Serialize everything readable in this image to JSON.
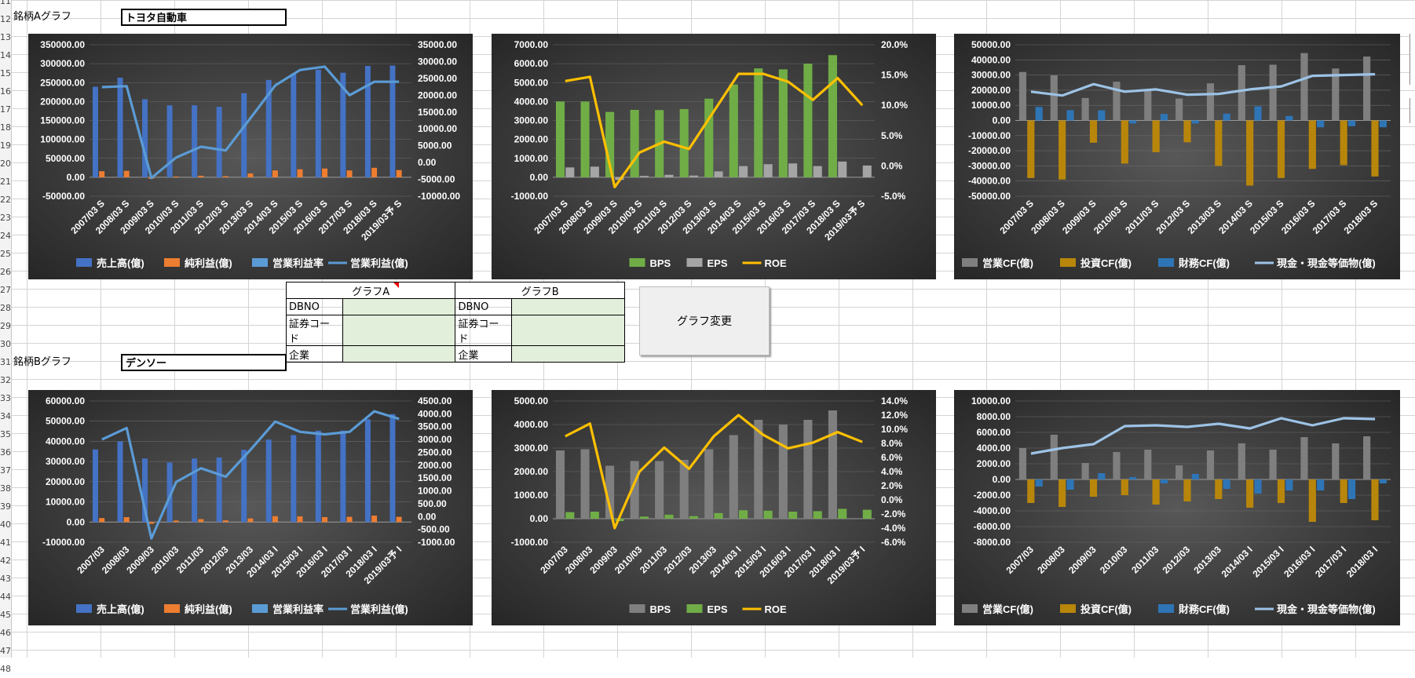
{
  "row_numbers": [
    "11",
    "12",
    "13",
    "14",
    "15",
    "16",
    "17",
    "18",
    "19",
    "20",
    "21",
    "22",
    "23",
    "24",
    "25",
    "26",
    "27",
    "28",
    "29",
    "30",
    "31",
    "32",
    "33",
    "34",
    "35",
    "36",
    "37",
    "38",
    "39",
    "40",
    "41",
    "42",
    "43",
    "44",
    "45",
    "46",
    "47",
    "48"
  ],
  "stock_a": {
    "label": "銘柄Aグラフ",
    "name": "トヨタ自動車"
  },
  "stock_b": {
    "label": "銘柄Bグラフ",
    "name": "デンソー"
  },
  "selector": {
    "graph_a": {
      "header": "グラフA",
      "rows": [
        {
          "label": "DBNO",
          "value": ""
        },
        {
          "label": "証券コード",
          "value": ""
        },
        {
          "label": "企業",
          "value": ""
        }
      ]
    },
    "graph_b": {
      "header": "グラフB",
      "rows": [
        {
          "label": "DBNO",
          "value": ""
        },
        {
          "label": "証券コード",
          "value": ""
        },
        {
          "label": "企業",
          "value": ""
        }
      ]
    }
  },
  "button": {
    "label": "グラフ変更"
  },
  "charts": [
    {
      "type": "combo",
      "categories": [
        "2007/03 S",
        "2008/03 S",
        "2009/03 S",
        "2010/03 S",
        "2011/03 S",
        "2012/03 S",
        "2013/03 S",
        "2014/03 S",
        "2015/03 S",
        "2016/03 S",
        "2017/03 S",
        "2018/03 S",
        "2019/03予 S"
      ],
      "y_ticks": [
        "350000.00",
        "300000.00",
        "250000.00",
        "200000.00",
        "150000.00",
        "100000.00",
        "50000.00",
        "0.00",
        "-50000.00"
      ],
      "y_range": [
        -50000,
        350000
      ],
      "y2_ticks": [
        "35000.00",
        "30000.00",
        "25000.00",
        "20000.00",
        "15000.00",
        "10000.00",
        "5000.00",
        "0.00",
        "-5000.00",
        "-10000.00"
      ],
      "y2_range": [
        -10000,
        35000
      ],
      "series": [
        {
          "name": "売上高(億)",
          "kind": "bar",
          "axis": "y",
          "color": "#4472c4",
          "values": [
            239000,
            263000,
            206000,
            190000,
            190000,
            186000,
            222000,
            257000,
            272000,
            284000,
            276000,
            294000,
            295000
          ]
        },
        {
          "name": "純利益(億)",
          "kind": "bar",
          "axis": "y",
          "color": "#ed7d31",
          "values": [
            16000,
            17000,
            -4000,
            2000,
            4000,
            3000,
            10000,
            18000,
            21000,
            23000,
            18000,
            25000,
            19000
          ]
        },
        {
          "name": "営業利益率",
          "kind": "bar",
          "axis": "y",
          "color": "#5b9bd5",
          "values": [
            0,
            0,
            0,
            0,
            0,
            0,
            0,
            0,
            0,
            0,
            0,
            0,
            0
          ]
        },
        {
          "name": "営業利益(億)",
          "kind": "line",
          "axis": "y2",
          "color": "#5b9bd5",
          "values": [
            22400,
            22700,
            -4600,
            1500,
            4700,
            3600,
            13200,
            22900,
            27500,
            28500,
            20000,
            24000,
            24000
          ]
        }
      ]
    },
    {
      "type": "combo",
      "categories": [
        "2007/03 S",
        "2008/03 S",
        "2009/03 S",
        "2010/03 S",
        "2011/03 S",
        "2012/03 S",
        "2013/03 S",
        "2014/03 S",
        "2015/03 S",
        "2016/03 S",
        "2017/03 S",
        "2018/03 S",
        "2019/03予 S"
      ],
      "y_ticks": [
        "7000.00",
        "6000.00",
        "5000.00",
        "4000.00",
        "3000.00",
        "2000.00",
        "1000.00",
        "0.00",
        "-1000.00"
      ],
      "y_range": [
        -1000,
        7000
      ],
      "y2_ticks": [
        "20.0%",
        "15.0%",
        "10.0%",
        "5.0%",
        "0.0%",
        "-5.0%"
      ],
      "y2_range": [
        -5,
        20
      ],
      "series": [
        {
          "name": "BPS",
          "kind": "bar",
          "axis": "y",
          "color": "#70ad47",
          "values": [
            4000,
            4000,
            3450,
            3560,
            3550,
            3600,
            4150,
            4900,
            5750,
            5700,
            6000,
            6450,
            0
          ]
        },
        {
          "name": "EPS",
          "kind": "bar",
          "axis": "y",
          "color": "#a5a5a5",
          "values": [
            520,
            560,
            -140,
            70,
            130,
            90,
            310,
            590,
            690,
            730,
            590,
            830,
            620
          ]
        },
        {
          "name": "ROE",
          "kind": "line",
          "axis": "y2",
          "color": "#ffc000",
          "values": [
            14.0,
            14.7,
            -3.5,
            2.2,
            4.0,
            2.8,
            9.0,
            15.2,
            15.2,
            13.9,
            10.9,
            14.5,
            10.0
          ]
        }
      ]
    },
    {
      "type": "combo",
      "categories": [
        "2007/03 S",
        "2008/03 S",
        "2009/03 S",
        "2010/03 S",
        "2011/03 S",
        "2012/03 S",
        "2013/03 S",
        "2014/03 S",
        "2015/03 S",
        "2016/03 S",
        "2017/03 S",
        "2018/03 S"
      ],
      "y_ticks": [
        "50000.00",
        "40000.00",
        "30000.00",
        "20000.00",
        "10000.00",
        "0.00",
        "-10000.00",
        "-20000.00",
        "-30000.00",
        "-40000.00",
        "-50000.00"
      ],
      "y_range": [
        -50000,
        50000
      ],
      "series": [
        {
          "name": "営業CF(億)",
          "kind": "bar",
          "axis": "y",
          "color": "#7f7f7f",
          "values": [
            32000,
            29800,
            14800,
            25600,
            20200,
            14500,
            24500,
            36500,
            36800,
            44500,
            34300,
            42200
          ]
        },
        {
          "name": "投資CF(億)",
          "kind": "bar",
          "axis": "y",
          "color": "#b8860b",
          "values": [
            -38000,
            -39000,
            -14700,
            -28500,
            -20900,
            -14400,
            -30000,
            -43000,
            -38000,
            -32000,
            -29500,
            -37000
          ]
        },
        {
          "name": "財務CF(億)",
          "kind": "bar",
          "axis": "y",
          "color": "#2e75b6",
          "values": [
            8900,
            6800,
            6700,
            -2000,
            4300,
            -2000,
            4500,
            9300,
            3000,
            -4500,
            -3800,
            -4500
          ]
        },
        {
          "name": "現金・現金等価物(億)",
          "kind": "line",
          "axis": "y",
          "color": "#9dc3e6",
          "values": [
            19000,
            16500,
            24000,
            19000,
            20500,
            17000,
            17500,
            20500,
            22500,
            29500,
            30000,
            30500
          ]
        }
      ]
    },
    {
      "type": "combo",
      "categories": [
        "2007/03",
        "2008/03",
        "2009/03",
        "2010/03",
        "2011/03",
        "2012/03",
        "2013/03",
        "2014/03 I",
        "2015/03 I",
        "2016/03 I",
        "2017/03 I",
        "2018/03 I",
        "2019/03予 I"
      ],
      "y_ticks": [
        "60000.00",
        "50000.00",
        "40000.00",
        "30000.00",
        "20000.00",
        "10000.00",
        "0.00",
        "-10000.00"
      ],
      "y_range": [
        -10000,
        60000
      ],
      "y2_ticks": [
        "4500.00",
        "4000.00",
        "3500.00",
        "3000.00",
        "2500.00",
        "2000.00",
        "1500.00",
        "1000.00",
        "500.00",
        "0.00",
        "-500.00",
        "-1000.00"
      ],
      "y2_range": [
        -1000,
        4500
      ],
      "series": [
        {
          "name": "売上高(億)",
          "kind": "bar",
          "axis": "y",
          "color": "#4472c4",
          "values": [
            36000,
            40000,
            31500,
            29500,
            31500,
            32000,
            35800,
            40900,
            43100,
            45300,
            45300,
            51000,
            53500
          ]
        },
        {
          "name": "純利益(億)",
          "kind": "bar",
          "axis": "y",
          "color": "#ed7d31",
          "values": [
            2000,
            2450,
            -850,
            750,
            1450,
            850,
            1800,
            2900,
            2800,
            2450,
            2600,
            3200,
            2600
          ]
        },
        {
          "name": "営業利益率",
          "kind": "bar",
          "axis": "y",
          "color": "#5b9bd5",
          "values": [
            0,
            0,
            0,
            0,
            0,
            0,
            0,
            0,
            0,
            0,
            0,
            0,
            0
          ]
        },
        {
          "name": "営業利益(億)",
          "kind": "line",
          "axis": "y2",
          "color": "#5b9bd5",
          "values": [
            3000,
            3450,
            -850,
            1350,
            1880,
            1550,
            2600,
            3700,
            3300,
            3200,
            3300,
            4100,
            3800
          ]
        }
      ]
    },
    {
      "type": "combo",
      "categories": [
        "2007/03",
        "2008/03",
        "2009/03",
        "2010/03",
        "2011/03",
        "2012/03",
        "2013/03",
        "2014/03 I",
        "2015/03 I",
        "2016/03 I",
        "2017/03 I",
        "2018/03 I",
        "2019/03予 I"
      ],
      "y_ticks": [
        "5000.00",
        "4000.00",
        "3000.00",
        "2000.00",
        "1000.00",
        "0.00",
        "-1000.00"
      ],
      "y_range": [
        -1000,
        5000
      ],
      "y2_ticks": [
        "14.0%",
        "12.0%",
        "10.0%",
        "8.0%",
        "6.0%",
        "4.0%",
        "2.0%",
        "0.0%",
        "-2.0%",
        "-4.0%",
        "-6.0%"
      ],
      "y2_range": [
        -6,
        14
      ],
      "series": [
        {
          "name": "BPS",
          "kind": "bar",
          "axis": "y",
          "color": "#7f7f7f",
          "values": [
            2900,
            2950,
            2250,
            2450,
            2450,
            2500,
            2950,
            3550,
            4200,
            4000,
            4200,
            4600,
            0
          ]
        },
        {
          "name": "EPS",
          "kind": "bar",
          "axis": "y",
          "color": "#70ad47",
          "values": [
            280,
            300,
            -100,
            90,
            170,
            110,
            240,
            360,
            340,
            300,
            320,
            420,
            380
          ]
        },
        {
          "name": "ROE",
          "kind": "line",
          "axis": "y2",
          "color": "#ffc000",
          "values": [
            9.0,
            10.8,
            -4.0,
            4.0,
            7.4,
            4.4,
            9.0,
            12.0,
            9.2,
            7.3,
            8.1,
            9.6,
            8.2
          ]
        }
      ]
    },
    {
      "type": "combo",
      "categories": [
        "2007/03",
        "2008/03",
        "2009/03",
        "2010/03",
        "2011/03",
        "2012/03",
        "2013/03",
        "2014/03 I",
        "2015/03 I",
        "2016/03 I",
        "2017/03 I",
        "2018/03 I"
      ],
      "y_ticks": [
        "10000.00",
        "8000.00",
        "6000.00",
        "4000.00",
        "2000.00",
        "0.00",
        "-2000.00",
        "-4000.00",
        "-6000.00",
        "-8000.00"
      ],
      "y_range": [
        -8000,
        10000
      ],
      "series": [
        {
          "name": "営業CF(億)",
          "kind": "bar",
          "axis": "y",
          "color": "#7f7f7f",
          "values": [
            4000,
            5700,
            2100,
            3500,
            3800,
            1800,
            3700,
            4600,
            3800,
            5400,
            4600,
            5500
          ]
        },
        {
          "name": "投資CF(億)",
          "kind": "bar",
          "axis": "y",
          "color": "#b8860b",
          "values": [
            -3000,
            -3500,
            -2200,
            -2000,
            -3200,
            -2800,
            -2500,
            -3600,
            -3000,
            -5400,
            -3000,
            -5200
          ]
        },
        {
          "name": "財務CF(億)",
          "kind": "bar",
          "axis": "y",
          "color": "#2e75b6",
          "values": [
            -900,
            -1300,
            800,
            300,
            -500,
            700,
            -1200,
            -1800,
            -1400,
            -1400,
            -2500,
            -500
          ]
        },
        {
          "name": "現金・現金等価物(億)",
          "kind": "line",
          "axis": "y",
          "color": "#9dc3e6",
          "values": [
            3300,
            4000,
            4500,
            6800,
            6900,
            6700,
            7100,
            6500,
            7800,
            6900,
            7800,
            7700
          ]
        }
      ]
    }
  ]
}
